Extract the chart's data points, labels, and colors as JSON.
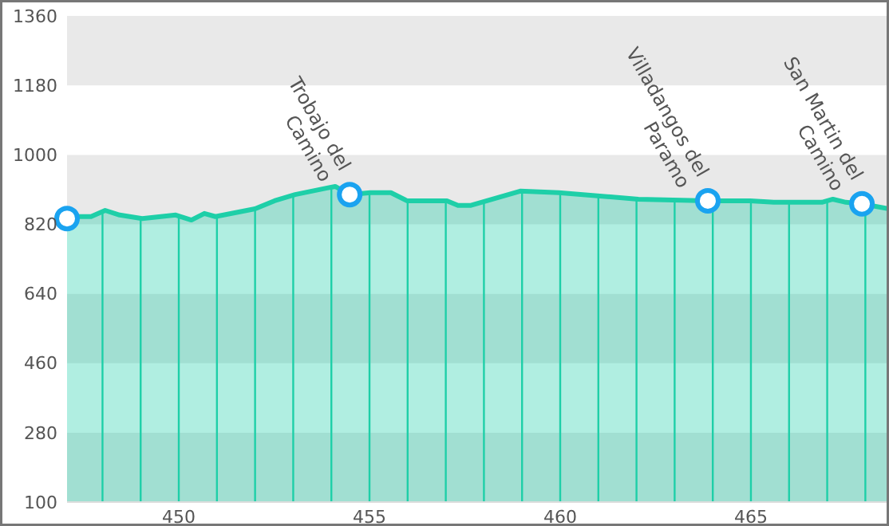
{
  "chart_data": {
    "type": "area",
    "xlim": [
      447.07,
      468.62
    ],
    "xticks": [
      {
        "value": 448,
        "label": null
      },
      {
        "value": 449,
        "label": null
      },
      450,
      {
        "value": 451,
        "label": null
      },
      {
        "value": 452,
        "label": null
      },
      {
        "value": 453,
        "label": null
      },
      {
        "value": 454,
        "label": null
      },
      455,
      {
        "value": 456,
        "label": null
      },
      {
        "value": 457,
        "label": null
      },
      {
        "value": 458,
        "label": null
      },
      {
        "value": 459,
        "label": null
      },
      460,
      {
        "value": 461,
        "label": null
      },
      {
        "value": 462,
        "label": null
      },
      {
        "value": 463,
        "label": null
      },
      {
        "value": 464,
        "label": null
      },
      465,
      {
        "value": 466,
        "label": null
      },
      {
        "value": 467,
        "label": null
      },
      {
        "value": 468,
        "label": null
      }
    ],
    "ylim": [
      100,
      1360
    ],
    "yticks": [
      100,
      280,
      460,
      640,
      820,
      1000,
      1180,
      1360
    ],
    "grid": true,
    "series": [
      {
        "color": "#1ecfa8",
        "x": [
          447.07,
          447.4,
          447.7,
          448.07,
          448.45,
          449.04,
          449.92,
          450.33,
          450.67,
          450.96,
          452.0,
          452.51,
          453.05,
          453.89,
          454.1,
          454.48,
          455.02,
          455.56,
          455.98,
          457.03,
          457.32,
          457.66,
          458.95,
          459.96,
          462.05,
          463.87,
          464.98,
          465.6,
          466.86,
          467.15,
          467.49,
          467.91,
          468.62
        ],
        "values": [
          835,
          840,
          840,
          856,
          844,
          835,
          844,
          831,
          848,
          840,
          860,
          881,
          897,
          914,
          918,
          897,
          902,
          902,
          881,
          881,
          869,
          869,
          906,
          902,
          885,
          881,
          881,
          877,
          877,
          885,
          877,
          873,
          860
        ]
      },
      {
        "type": "scatter",
        "color": "#1aa3f0",
        "marker": "circle",
        "x": [
          447.07,
          454.48,
          463.87,
          467.91
        ],
        "values": [
          835,
          897,
          881,
          873
        ]
      }
    ],
    "annotations": [
      {
        "text": "Trobajo del Camino",
        "x": 454.48,
        "y": 897
      },
      {
        "text": "Villadangos del Paramo",
        "x": 463.87,
        "y": 881
      },
      {
        "text": "San Martin del Camino",
        "x": 467.91,
        "y": 873
      }
    ]
  }
}
